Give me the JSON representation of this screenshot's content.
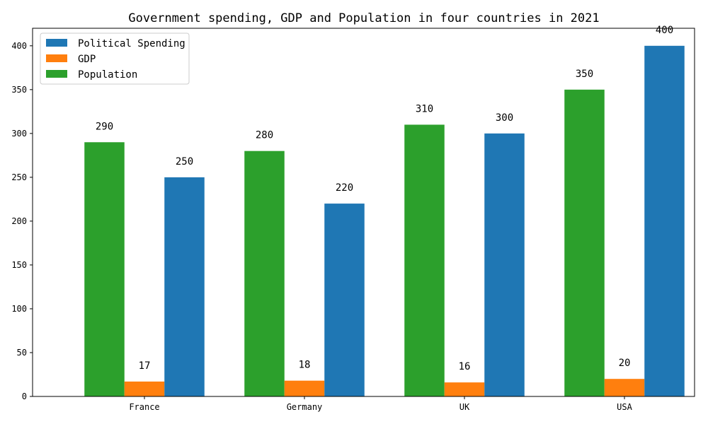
{
  "chart_data": {
    "type": "bar",
    "title": "Government spending, GDP and Population in four countries in 2021",
    "xlabel": "",
    "ylabel": "",
    "categories": [
      "France",
      "Germany",
      "UK",
      "USA"
    ],
    "series": [
      {
        "name": "Political Spending",
        "color": "#1f77b4",
        "values": [
          250,
          220,
          300,
          400
        ]
      },
      {
        "name": "GDP",
        "color": "#ff7f0e",
        "values": [
          17,
          18,
          16,
          20
        ]
      },
      {
        "name": "Population",
        "color": "#2ca02c",
        "values": [
          290,
          280,
          310,
          350
        ]
      }
    ],
    "draw_order": [
      "Population",
      "GDP",
      "Political Spending"
    ],
    "ylim": [
      0,
      420
    ],
    "yticks": [
      0,
      50,
      100,
      150,
      200,
      250,
      300,
      350,
      400
    ],
    "grid": false,
    "legend_position": "top-left"
  }
}
